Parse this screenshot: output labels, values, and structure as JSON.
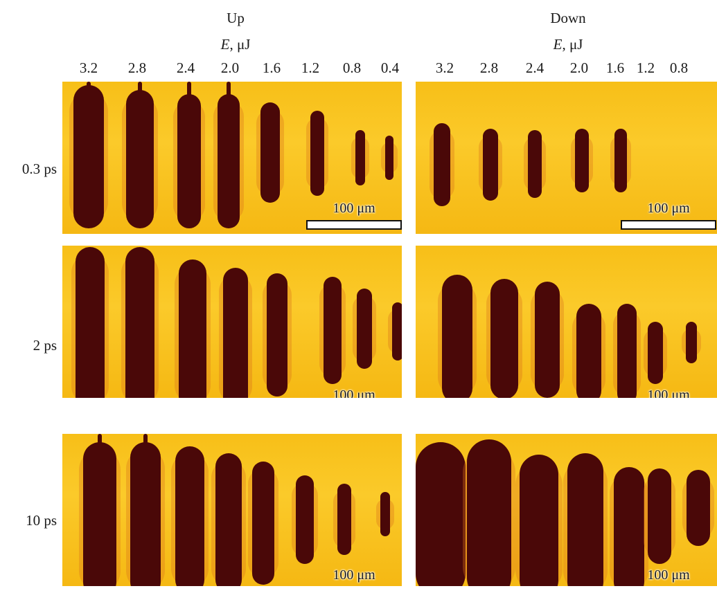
{
  "columns": [
    {
      "title": "Up",
      "energy_label": "E",
      "energy_unit": ", μJ",
      "energies": [
        "3.2",
        "2.8",
        "2.4",
        "2.0",
        "1.6",
        "1.2",
        "0.8",
        "0.4"
      ]
    },
    {
      "title": "Down",
      "energy_label": "E",
      "energy_unit": ", μJ",
      "energies": [
        "3.2",
        "2.8",
        "2.4",
        "2.0",
        "1.6",
        "1.2",
        "0.8"
      ]
    }
  ],
  "rows": [
    {
      "label": "0.3 ps"
    },
    {
      "label": "2 ps"
    },
    {
      "label": "10 ps"
    }
  ],
  "scale_bar": {
    "label": "100 μm"
  },
  "colors": {
    "background": "#f9c21f",
    "track": "#4a0808"
  }
}
